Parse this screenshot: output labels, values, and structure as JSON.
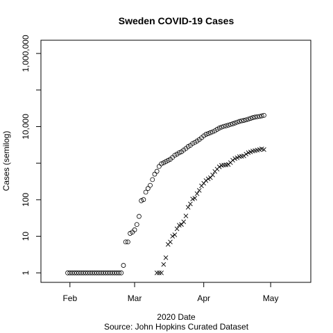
{
  "chart_data": {
    "type": "scatter",
    "title": "Sweden COVID-19 Cases",
    "xlabel": "2020 Date",
    "xlabel2": "Source: John Hopkins Curated Dataset",
    "ylabel": "Cases (semilog)",
    "y_scale": "log",
    "xlim": [
      "2020-01-19",
      "2020-05-19"
    ],
    "ylim": [
      0.55,
      2300000
    ],
    "x_ticks": [
      {
        "date": "2020-02-01",
        "label": "Feb"
      },
      {
        "date": "2020-03-01",
        "label": "Mar"
      },
      {
        "date": "2020-04-01",
        "label": "Apr"
      },
      {
        "date": "2020-05-01",
        "label": "May"
      }
    ],
    "y_ticks": [
      {
        "value": 1,
        "label": "1"
      },
      {
        "value": 10,
        "label": "10"
      },
      {
        "value": 100,
        "label": "100"
      },
      {
        "value": 10000,
        "label": "10,000"
      },
      {
        "value": 1000000,
        "label": "1,000,000"
      }
    ],
    "grid": false,
    "legend": "none",
    "series": [
      {
        "marker": "circle",
        "x": [
          "2020-01-31",
          "2020-02-01",
          "2020-02-02",
          "2020-02-03",
          "2020-02-04",
          "2020-02-05",
          "2020-02-06",
          "2020-02-07",
          "2020-02-08",
          "2020-02-09",
          "2020-02-10",
          "2020-02-11",
          "2020-02-12",
          "2020-02-13",
          "2020-02-14",
          "2020-02-15",
          "2020-02-16",
          "2020-02-17",
          "2020-02-18",
          "2020-02-19",
          "2020-02-20",
          "2020-02-21",
          "2020-02-22",
          "2020-02-23",
          "2020-02-24",
          "2020-02-25",
          "2020-02-26",
          "2020-02-27",
          "2020-02-28",
          "2020-02-29",
          "2020-03-01",
          "2020-03-02",
          "2020-03-03",
          "2020-03-04",
          "2020-03-05",
          "2020-03-06",
          "2020-03-07",
          "2020-03-08",
          "2020-03-09",
          "2020-03-10",
          "2020-03-11",
          "2020-03-12",
          "2020-03-13",
          "2020-03-14",
          "2020-03-15",
          "2020-03-16",
          "2020-03-17",
          "2020-03-18",
          "2020-03-19",
          "2020-03-20",
          "2020-03-21",
          "2020-03-22",
          "2020-03-23",
          "2020-03-24",
          "2020-03-25",
          "2020-03-26",
          "2020-03-27",
          "2020-03-28",
          "2020-03-29",
          "2020-03-30",
          "2020-03-31",
          "2020-04-01",
          "2020-04-02",
          "2020-04-03",
          "2020-04-04",
          "2020-04-05",
          "2020-04-06",
          "2020-04-07",
          "2020-04-08",
          "2020-04-09",
          "2020-04-10",
          "2020-04-11",
          "2020-04-12",
          "2020-04-13",
          "2020-04-14",
          "2020-04-15",
          "2020-04-16",
          "2020-04-17",
          "2020-04-18",
          "2020-04-19",
          "2020-04-20",
          "2020-04-21",
          "2020-04-22",
          "2020-04-23",
          "2020-04-24",
          "2020-04-25",
          "2020-04-26",
          "2020-04-27",
          "2020-04-28"
        ],
        "y": [
          1,
          1,
          1,
          1,
          1,
          1,
          1,
          1,
          1,
          1,
          1,
          1,
          1,
          1,
          1,
          1,
          1,
          1,
          1,
          1,
          1,
          1,
          1,
          1,
          1,
          1.6,
          7,
          7,
          12,
          13,
          15,
          21,
          35,
          94,
          101,
          161,
          203,
          248,
          355,
          500,
          599,
          814,
          961,
          1022,
          1103,
          1190,
          1279,
          1439,
          1639,
          1763,
          1934,
          2046,
          2286,
          2526,
          2840,
          3069,
          3447,
          3700,
          4028,
          4435,
          4947,
          5568,
          6131,
          6443,
          6830,
          7206,
          7693,
          8419,
          9141,
          9685,
          10151,
          10483,
          10948,
          11445,
          11927,
          12540,
          13216,
          13822,
          14385,
          14777,
          15322,
          16004,
          16755,
          17567,
          18177,
          18640,
          18926,
          19621,
          20302
        ]
      },
      {
        "marker": "x",
        "x": [
          "2020-03-11",
          "2020-03-12",
          "2020-03-13",
          "2020-03-14",
          "2020-03-15",
          "2020-03-16",
          "2020-03-17",
          "2020-03-18",
          "2020-03-19",
          "2020-03-20",
          "2020-03-21",
          "2020-03-22",
          "2020-03-23",
          "2020-03-24",
          "2020-03-25",
          "2020-03-26",
          "2020-03-27",
          "2020-03-28",
          "2020-03-29",
          "2020-03-30",
          "2020-03-31",
          "2020-04-01",
          "2020-04-02",
          "2020-04-03",
          "2020-04-04",
          "2020-04-05",
          "2020-04-06",
          "2020-04-07",
          "2020-04-08",
          "2020-04-09",
          "2020-04-10",
          "2020-04-11",
          "2020-04-12",
          "2020-04-13",
          "2020-04-14",
          "2020-04-15",
          "2020-04-16",
          "2020-04-17",
          "2020-04-18",
          "2020-04-19",
          "2020-04-20",
          "2020-04-21",
          "2020-04-22",
          "2020-04-23",
          "2020-04-24",
          "2020-04-25",
          "2020-04-26",
          "2020-04-27",
          "2020-04-28"
        ],
        "y": [
          1,
          1,
          1,
          1.7,
          2.6,
          6,
          7,
          10,
          11,
          16,
          20,
          21,
          25,
          36,
          62,
          77,
          105,
          110,
          146,
          180,
          239,
          282,
          333,
          373,
          401,
          477,
          591,
          687,
          793,
          870,
          887,
          899,
          919,
          1033,
          1203,
          1333,
          1400,
          1511,
          1540,
          1580,
          1765,
          1937,
          2021,
          2152,
          2192,
          2274,
          2355,
          2462,
          2355
        ]
      }
    ]
  }
}
